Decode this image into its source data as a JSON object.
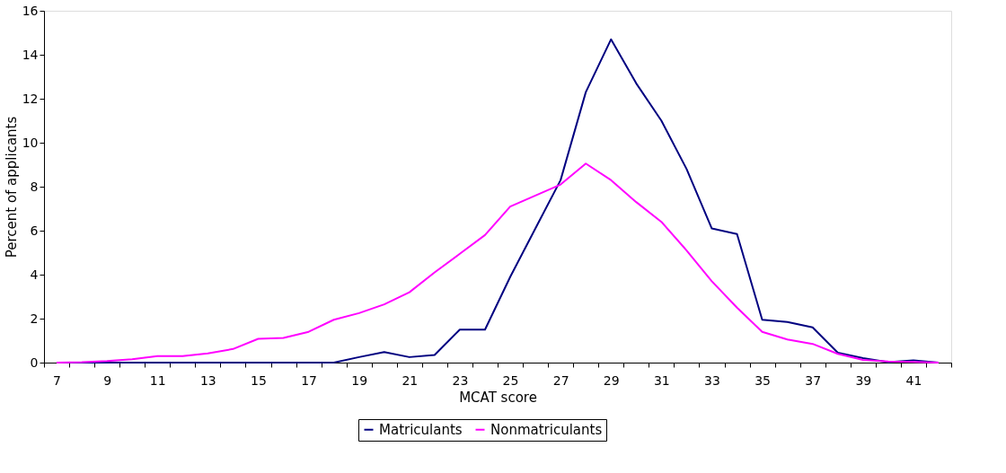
{
  "chart_data": {
    "type": "line",
    "xlabel": "MCAT score",
    "ylabel": "Percent of applicants",
    "categories": [
      "7",
      null,
      "9",
      null,
      "11",
      null,
      "13",
      null,
      "15",
      null,
      "17",
      null,
      "19",
      null,
      "21",
      null,
      "23",
      null,
      "25",
      null,
      "27",
      null,
      "29",
      null,
      "31",
      null,
      "33",
      null,
      "35",
      null,
      "37",
      null,
      "39",
      null,
      "41",
      null
    ],
    "series": [
      {
        "name": "Matriculants",
        "color": "#000080",
        "values": [
          0,
          0,
          0,
          0,
          0,
          0,
          0,
          0,
          0,
          0,
          0,
          0,
          0.25,
          0.48,
          0.25,
          0.35,
          1.5,
          1.5,
          3.9,
          6.1,
          8.3,
          12.3,
          14.7,
          12.7,
          11.0,
          8.8,
          6.1,
          5.85,
          1.95,
          1.85,
          1.6,
          0.45,
          0.2,
          0.02,
          0.1,
          0
        ]
      },
      {
        "name": "Nonmatriculants",
        "color": "#ff00ff",
        "values": [
          0,
          0.02,
          0.07,
          0.15,
          0.3,
          0.3,
          0.42,
          0.62,
          1.08,
          1.12,
          1.4,
          1.95,
          2.25,
          2.65,
          3.2,
          4.1,
          4.95,
          5.8,
          7.1,
          7.6,
          8.1,
          9.05,
          8.3,
          7.3,
          6.4,
          5.1,
          3.7,
          2.5,
          1.4,
          1.05,
          0.85,
          0.4,
          0.12,
          0.05,
          0.03,
          0
        ]
      }
    ],
    "ylim": [
      0,
      16
    ],
    "yticks": [
      0,
      2,
      4,
      6,
      8,
      10,
      12,
      14,
      16
    ],
    "grid": false,
    "legend": "bottom",
    "marker": "none",
    "line_style": "solid"
  }
}
